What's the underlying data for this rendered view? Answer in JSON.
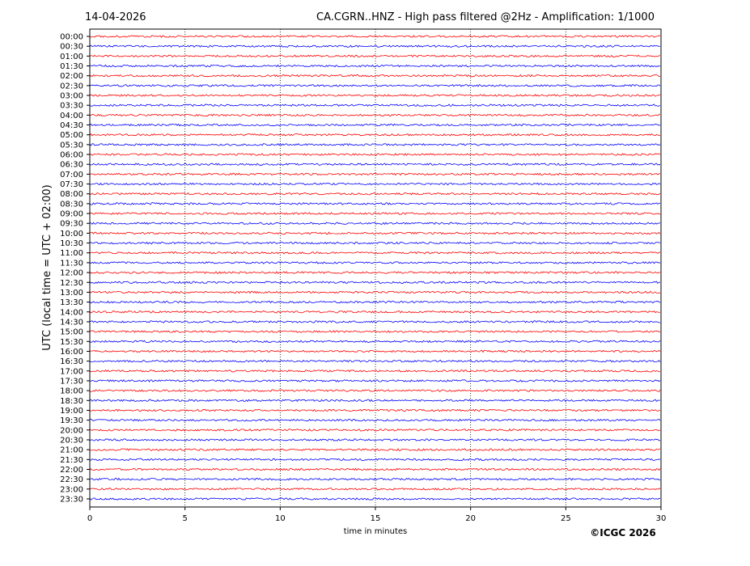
{
  "chart_data": {
    "type": "helicorder",
    "date": "14-04-2026",
    "title": "CA.CGRN..HNZ - High pass filtered @2Hz - Amplification: 1/1000",
    "ylabel": "UTC (local time = UTC + 02:00)",
    "xlabel": "time in minutes",
    "credit": "©ICGC 2026",
    "categories": [
      "00:00",
      "00:30",
      "01:00",
      "01:30",
      "02:00",
      "02:30",
      "03:00",
      "03:30",
      "04:00",
      "04:30",
      "05:00",
      "05:30",
      "06:00",
      "06:30",
      "07:00",
      "07:30",
      "08:00",
      "08:30",
      "09:00",
      "09:30",
      "10:00",
      "10:30",
      "11:00",
      "11:30",
      "12:00",
      "12:30",
      "13:00",
      "13:30",
      "14:00",
      "14:30",
      "15:00",
      "15:30",
      "16:00",
      "16:30",
      "17:00",
      "17:30",
      "18:00",
      "18:30",
      "19:00",
      "19:30",
      "20:00",
      "20:30",
      "21:00",
      "21:30",
      "22:00",
      "22:30",
      "23:00",
      "23:30"
    ],
    "colors": [
      "#ff0000",
      "#0000ff"
    ],
    "xlim": [
      0,
      30
    ],
    "xticks": [
      0,
      5,
      10,
      15,
      20,
      25,
      30
    ],
    "grid": true
  }
}
